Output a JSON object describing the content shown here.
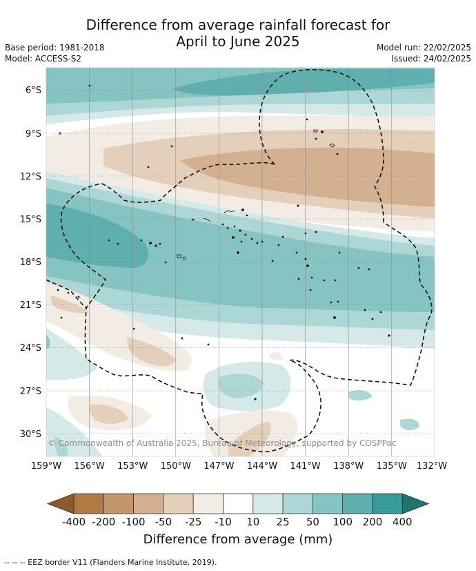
{
  "title": {
    "line1": "Difference from average rainfall forecast for",
    "line2": "April to June 2025"
  },
  "meta": {
    "base_period": "Base period: 1981-2018",
    "model": "Model: ACCESS-S2",
    "model_run": "Model run: 22/02/2025",
    "issued": "Issued: 24/02/2025"
  },
  "map": {
    "lat_labels": [
      "6°S",
      "9°S",
      "12°S",
      "15°S",
      "18°S",
      "21°S",
      "24°S",
      "27°S",
      "30°S"
    ],
    "lon_labels": [
      "159°W",
      "156°W",
      "153°W",
      "150°W",
      "147°W",
      "144°W",
      "141°W",
      "138°W",
      "135°W",
      "132°W"
    ],
    "copyright": "© Commonwealth of Australia 2025, Bureau of Meteorology, supported by COSPPac"
  },
  "colorbar": {
    "ticks": [
      "-400",
      "-200",
      "-100",
      "-50",
      "-25",
      "-10",
      "10",
      "25",
      "50",
      "100",
      "200",
      "400"
    ],
    "colors": [
      "#8c5a2b",
      "#b07a43",
      "#c4966c",
      "#d3b190",
      "#e3cfba",
      "#f2ece5",
      "#ffffff",
      "#d4e9e8",
      "#acd7d6",
      "#86c4c3",
      "#5eafae",
      "#379a99",
      "#1f7472"
    ],
    "label": "Difference from average (mm)"
  },
  "legend": {
    "eez": "--  --  -- EEZ border V11 (Flanders Marine Institute, 2019)."
  }
}
